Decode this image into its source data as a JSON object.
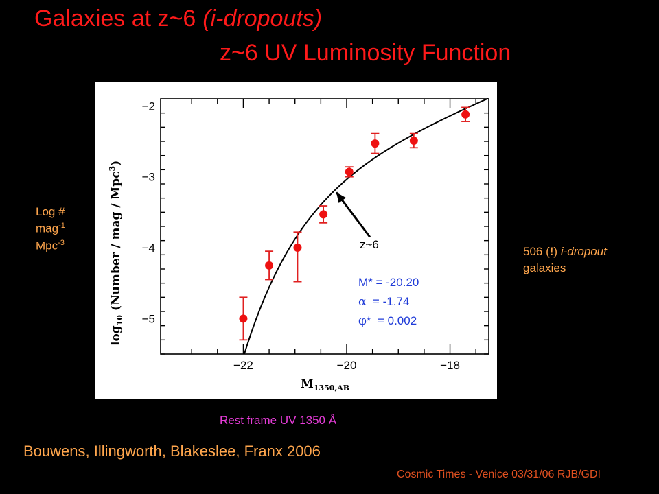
{
  "slide": {
    "title_part1": "Galaxies at z~6",
    "title_part2": "(i-dropouts)",
    "title_line2": "z~6 UV Luminosity Function",
    "left_label": {
      "line1": "Log #",
      "line2_base": "mag",
      "line2_sup": "-1",
      "line3_base": "Mpc",
      "line3_sup": "-3"
    },
    "right_label": {
      "count": "506 (",
      "bang": "!",
      "close": ")",
      "italic": "i-dropout",
      "line2": "galaxies"
    },
    "rest_frame": "Rest frame UV 1350 Å",
    "citation": "Bouwens, Illingworth, Blakeslee, Franx 2006",
    "credit": "Cosmic Times - Venice 03/31/06  RJB/GDI"
  },
  "chart_data": {
    "type": "scatter",
    "xlabel_main": "M",
    "xlabel_sub": "1350,AB",
    "ylabel": "log",
    "ylabel_sub": "10",
    "ylabel_rest": " (Number / mag / Mpc",
    "ylabel_sup": "3",
    "ylabel_end": ")",
    "xlim": [
      -23.6,
      -17.25
    ],
    "ylim": [
      -5.5,
      -1.9
    ],
    "x_ticks": [
      -22,
      -20,
      -18
    ],
    "y_ticks": [
      -2,
      -3,
      -4,
      -5
    ],
    "x_tick_labels": [
      "−22",
      "−20",
      "−18"
    ],
    "y_tick_labels": [
      "−2",
      "−3",
      "−4",
      "−5"
    ],
    "series": [
      {
        "points": [
          {
            "x": -22.0,
            "y": -5.0,
            "err_lo": 0.3,
            "err_hi": 0.3
          },
          {
            "x": -21.5,
            "y": -4.25,
            "err_lo": 0.2,
            "err_hi": 0.2
          },
          {
            "x": -20.95,
            "y": -4.0,
            "err_lo": 0.48,
            "err_hi": 0.22
          },
          {
            "x": -20.45,
            "y": -3.53,
            "err_lo": 0.12,
            "err_hi": 0.12
          },
          {
            "x": -19.95,
            "y": -2.93,
            "err_lo": 0.07,
            "err_hi": 0.07
          },
          {
            "x": -19.45,
            "y": -2.53,
            "err_lo": 0.14,
            "err_hi": 0.14
          },
          {
            "x": -18.7,
            "y": -2.49,
            "err_lo": 0.1,
            "err_hi": 0.1
          },
          {
            "x": -17.7,
            "y": -2.12,
            "err_lo": 0.1,
            "err_hi": 0.1
          }
        ]
      }
    ],
    "schechter": {
      "M_star": -20.2,
      "alpha": -1.74,
      "phi_star": 0.002
    },
    "annotation": {
      "label": "z~6",
      "arrow_from": [
        -19.55,
        -3.85
      ],
      "arrow_to": [
        -20.2,
        -3.22
      ]
    },
    "params_text": {
      "line1": "M* = -20.20",
      "line2_sym": "α",
      "line2_val": "  = -1.74",
      "line3_sym": "φ",
      "line3_val": "*  = 0.002"
    }
  }
}
